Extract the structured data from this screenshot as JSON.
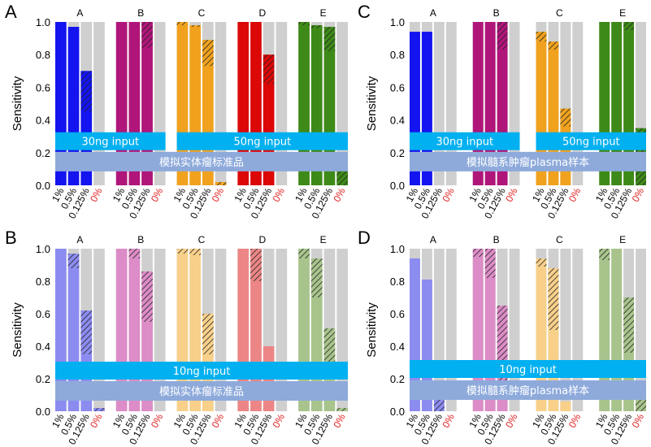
{
  "figure": {
    "bar_hatch_note": "hatched portion marks the hatch range of each bar"
  },
  "chart_data": [
    {
      "id": "panel-A",
      "type": "bar",
      "panel_label": "A",
      "ylabel": "Sensitivity",
      "ylim": [
        0,
        1.0
      ],
      "yticks": [
        "0.0",
        "0.2",
        "0.4",
        "0.6",
        "0.8",
        "1.0"
      ],
      "xticks": [
        "1%",
        "0.5%",
        "0.125%",
        "0%"
      ],
      "shade": "dark",
      "groups": [
        {
          "label": "A",
          "color": "#1414f0",
          "values": [
            1.0,
            0.97,
            0.7,
            0.0
          ],
          "hatch": [
            null,
            null,
            [
              0.45,
              0.7
            ],
            null
          ]
        },
        {
          "label": "B",
          "color": "#b0157a",
          "values": [
            1.0,
            1.0,
            1.0,
            0.0
          ],
          "hatch": [
            null,
            null,
            [
              0.84,
              1.0
            ],
            null
          ]
        },
        {
          "label": "C",
          "color": "#f0a21e",
          "values": [
            1.0,
            0.98,
            0.89,
            0.02
          ],
          "hatch": [
            [
              0.98,
              1.0
            ],
            [
              0.97,
              0.98
            ],
            [
              0.73,
              0.89
            ],
            [
              0.0,
              0.02
            ]
          ]
        },
        {
          "label": "D",
          "color": "#dc0808",
          "values": [
            1.0,
            1.0,
            0.8,
            0.0
          ],
          "hatch": [
            null,
            null,
            [
              0.62,
              0.8
            ],
            null
          ]
        },
        {
          "label": "E",
          "color": "#3e8a18",
          "values": [
            1.0,
            0.98,
            0.97,
            0.11
          ],
          "hatch": [
            [
              0.98,
              1.0
            ],
            [
              0.96,
              0.98
            ],
            [
              0.82,
              0.97
            ],
            [
              0.0,
              0.11
            ]
          ]
        }
      ],
      "banners": [
        {
          "text": "30ng input",
          "kind": "cyan",
          "from_group": 0,
          "to_group": 1,
          "y": 0.27
        },
        {
          "text": "50ng input",
          "kind": "cyan",
          "from_group": 2,
          "to_group": 4,
          "y": 0.27
        },
        {
          "text": "模拟实体瘤标准品",
          "kind": "gray",
          "from_group": 0,
          "to_group": 4,
          "y": 0.145
        }
      ]
    },
    {
      "id": "panel-C",
      "type": "bar",
      "panel_label": "C",
      "ylabel": "Sensitivity",
      "ylim": [
        0,
        1.0
      ],
      "yticks": [
        "0.0",
        "0.2",
        "0.4",
        "0.6",
        "0.8",
        "1.0"
      ],
      "xticks": [
        "1%",
        "0.5%",
        "0.125%",
        "0%"
      ],
      "shade": "dark",
      "groups": [
        {
          "label": "A",
          "color": "#1414f0",
          "values": [
            0.94,
            0.94,
            0.0,
            0.0
          ],
          "hatch": [
            null,
            null,
            null,
            null
          ]
        },
        {
          "label": "B",
          "color": "#b0157a",
          "values": [
            1.0,
            1.0,
            1.0,
            0.0
          ],
          "hatch": [
            null,
            null,
            [
              0.83,
              1.0
            ],
            null
          ]
        },
        {
          "label": "C",
          "color": "#f0a21e",
          "values": [
            0.94,
            0.88,
            0.47,
            0.0
          ],
          "hatch": [
            [
              0.88,
              0.94
            ],
            [
              0.83,
              0.88
            ],
            [
              0.36,
              0.47
            ],
            null
          ]
        },
        {
          "label": "E",
          "color": "#3e8a18",
          "values": [
            1.0,
            1.0,
            1.0,
            0.35
          ],
          "hatch": [
            null,
            null,
            [
              0.95,
              1.0
            ],
            [
              0.0,
              0.35
            ]
          ]
        }
      ],
      "banners": [
        {
          "text": "30ng input",
          "kind": "cyan",
          "from_group": 0,
          "to_group": 1,
          "y": 0.27
        },
        {
          "text": "50ng input",
          "kind": "cyan",
          "from_group": 2,
          "to_group": 3,
          "y": 0.27
        },
        {
          "text": "模拟髓系肿瘤plasma样本",
          "kind": "gray",
          "from_group": 0,
          "to_group": 3,
          "y": 0.145
        }
      ]
    },
    {
      "id": "panel-B",
      "type": "bar",
      "panel_label": "B",
      "ylabel": "Sensitivity",
      "ylim": [
        0,
        1.0
      ],
      "yticks": [
        "0.0",
        "0.2",
        "0.4",
        "0.6",
        "0.8",
        "1.0"
      ],
      "xticks": [
        "1%",
        "0.5%",
        "0.125%",
        "0%"
      ],
      "shade": "light",
      "groups": [
        {
          "label": "A",
          "color": "#8c8cf0",
          "values": [
            1.0,
            0.97,
            0.62,
            0.02
          ],
          "hatch": [
            null,
            [
              0.88,
              0.97
            ],
            [
              0.35,
              0.62
            ],
            [
              0.0,
              0.02
            ]
          ]
        },
        {
          "label": "B",
          "color": "#dc8cc6",
          "values": [
            1.0,
            1.0,
            0.86,
            0.0
          ],
          "hatch": [
            null,
            [
              0.94,
              1.0
            ],
            [
              0.55,
              0.86
            ],
            null
          ]
        },
        {
          "label": "C",
          "color": "#f8d08a",
          "values": [
            1.0,
            1.0,
            0.6,
            0.0
          ],
          "hatch": [
            [
              0.97,
              1.0
            ],
            [
              0.96,
              1.0
            ],
            [
              0.35,
              0.6
            ],
            null
          ]
        },
        {
          "label": "D",
          "color": "#ec8686",
          "values": [
            1.0,
            1.0,
            0.4,
            0.0
          ],
          "hatch": [
            null,
            [
              0.8,
              1.0
            ],
            null,
            null
          ]
        },
        {
          "label": "E",
          "color": "#a8c48c",
          "values": [
            1.0,
            0.94,
            0.51,
            0.02
          ],
          "hatch": [
            [
              0.94,
              1.0
            ],
            [
              0.7,
              0.94
            ],
            [
              0.28,
              0.51
            ],
            [
              0.0,
              0.02
            ]
          ]
        }
      ],
      "banners": [
        {
          "text": "10ng input",
          "kind": "cyan",
          "from_group": 0,
          "to_group": 4,
          "y": 0.25
        },
        {
          "text": "模拟实体瘤标准品",
          "kind": "gray",
          "from_group": 0,
          "to_group": 4,
          "y": 0.125
        }
      ]
    },
    {
      "id": "panel-D",
      "type": "bar",
      "panel_label": "D",
      "ylabel": "Sensitivity",
      "ylim": [
        0,
        1.0
      ],
      "yticks": [
        "0.0",
        "0.2",
        "0.4",
        "0.6",
        "0.8",
        "1.0"
      ],
      "xticks": [
        "1%",
        "0.5%",
        "0.125%",
        "0%"
      ],
      "shade": "light",
      "groups": [
        {
          "label": "A",
          "color": "#8c8cf0",
          "values": [
            0.94,
            0.81,
            0.08,
            0.0
          ],
          "hatch": [
            null,
            null,
            [
              0.0,
              0.08
            ],
            null
          ]
        },
        {
          "label": "B",
          "color": "#dc8cc6",
          "values": [
            1.0,
            1.0,
            0.65,
            0.0
          ],
          "hatch": [
            [
              0.95,
              1.0
            ],
            [
              0.82,
              1.0
            ],
            [
              0.14,
              0.65
            ],
            null
          ]
        },
        {
          "label": "C",
          "color": "#f8d08a",
          "values": [
            0.94,
            0.88,
            0.06,
            0.0
          ],
          "hatch": [
            [
              0.89,
              0.94
            ],
            [
              0.5,
              0.88
            ],
            null,
            null
          ]
        },
        {
          "label": "E",
          "color": "#a8c48c",
          "values": [
            1.0,
            1.0,
            0.7,
            0.09
          ],
          "hatch": [
            [
              0.93,
              1.0
            ],
            null,
            [
              0.36,
              0.7
            ],
            [
              0.0,
              0.09
            ]
          ]
        }
      ],
      "banners": [
        {
          "text": "10ng input",
          "kind": "cyan",
          "from_group": 0,
          "to_group": 3,
          "y": 0.26
        },
        {
          "text": "模拟髓系肿瘤plasma样本",
          "kind": "gray",
          "from_group": 0,
          "to_group": 3,
          "y": 0.13
        }
      ]
    }
  ],
  "colors": {
    "track": "#cfcfcf",
    "banner_cyan": "#00b0f0",
    "banner_gray": "#8eaadb",
    "zero_label": "#e02020",
    "text": "#000000"
  }
}
